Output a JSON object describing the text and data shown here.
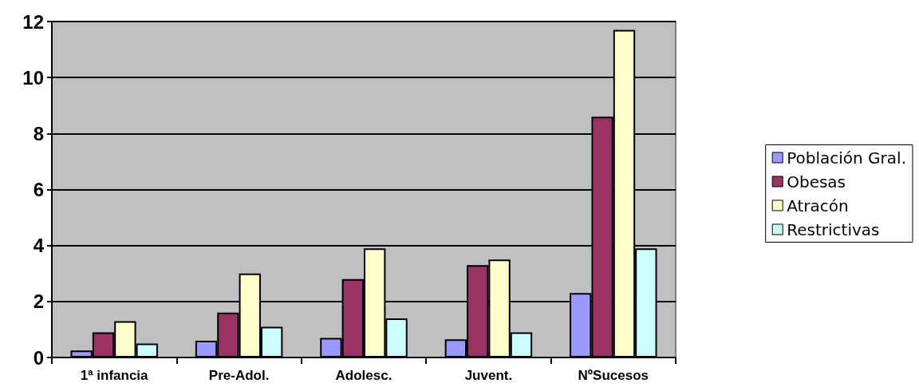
{
  "chart_data": {
    "type": "bar",
    "categories": [
      "1ª infancia",
      "Pre-Adol.",
      "Adolesc.",
      "Juvent.",
      "NºSucesos"
    ],
    "series": [
      {
        "name": "Población Gral.",
        "color": "#9999ff",
        "values": [
          0.25,
          0.6,
          0.7,
          0.65,
          2.3
        ]
      },
      {
        "name": "Obesas",
        "color": "#993366",
        "values": [
          0.9,
          1.6,
          2.8,
          3.3,
          8.6
        ]
      },
      {
        "name": "Atracón",
        "color": "#ffffcc",
        "values": [
          1.3,
          3.0,
          3.9,
          3.5,
          11.7
        ]
      },
      {
        "name": "Restrictivas",
        "color": "#ccffff",
        "values": [
          0.5,
          1.1,
          1.4,
          0.9,
          3.9
        ]
      }
    ],
    "ylim": [
      0,
      12
    ],
    "yticks": [
      0,
      2,
      4,
      6,
      8,
      10,
      12
    ],
    "grid": "y",
    "legend": "right"
  }
}
